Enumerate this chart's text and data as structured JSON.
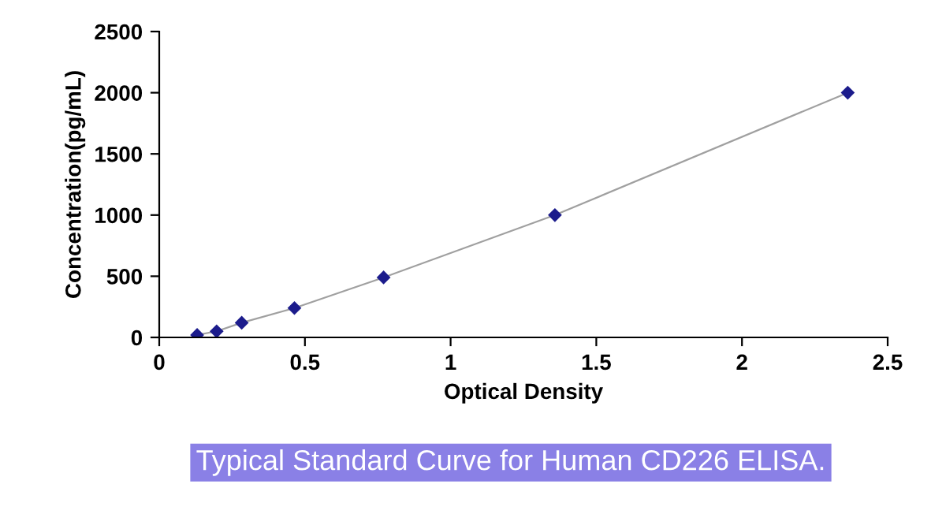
{
  "chart_data": {
    "type": "line",
    "title": "Typical Standard Curve for Human CD226 ELISA.",
    "xlabel": "Optical Density",
    "ylabel": "Concentration(pg/mL)",
    "x": [
      0.13,
      0.197,
      0.283,
      0.464,
      0.77,
      1.358,
      2.363
    ],
    "series": [
      {
        "color": "#1c1c8c",
        "values": [
          20,
          50,
          120,
          240,
          490,
          1000,
          2000
        ]
      }
    ],
    "xlim": [
      0,
      2.5
    ],
    "xticks": [
      0,
      0.5,
      1,
      1.5,
      2,
      2.5
    ],
    "ylim": [
      0,
      2500
    ],
    "yticks": [
      0,
      500,
      1000,
      1500,
      2000,
      2500
    ],
    "grid": false,
    "legend": false,
    "marker": "diamond",
    "line_style": "solid"
  }
}
